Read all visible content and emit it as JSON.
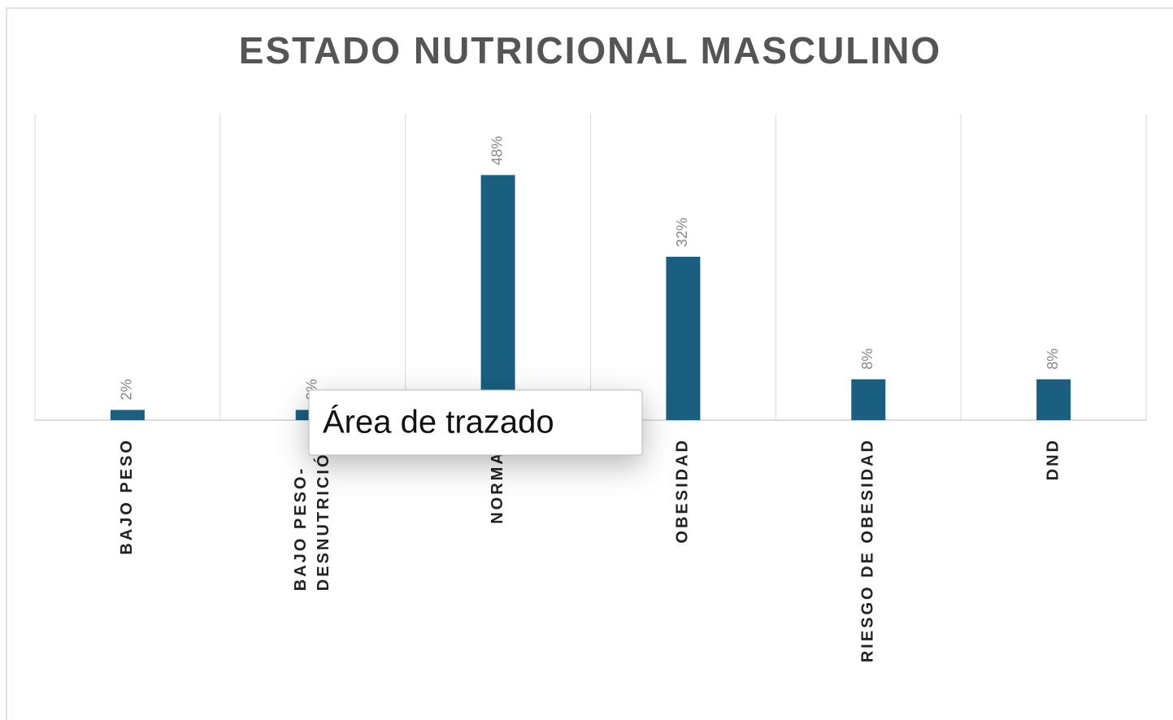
{
  "chart_data": {
    "type": "bar",
    "title": "ESTADO NUTRICIONAL MASCULINO",
    "categories": [
      "BAJO PESO",
      "BAJO PESO-DESNUTRICIÓN",
      "NORMAL",
      "OBESIDAD",
      "RIESGO DE OBESIDAD",
      "DND"
    ],
    "values": [
      2,
      2,
      48,
      32,
      8,
      8
    ],
    "value_labels": [
      "2%",
      "2%",
      "48%",
      "32%",
      "8%",
      "8%"
    ],
    "color": "#1a5e80",
    "ylim": [
      0,
      60
    ],
    "grid": true,
    "tooltip": "Área de trazado"
  }
}
